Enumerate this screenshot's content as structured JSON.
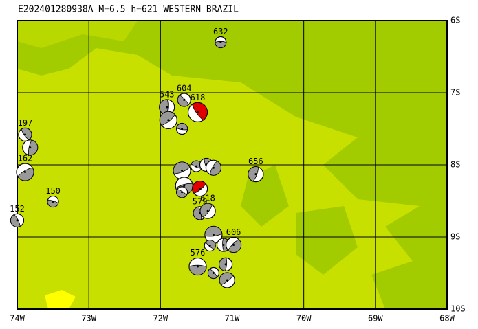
{
  "map": {
    "title": "E202401280938A M=6.5 h=621 WESTERN BRAZIL",
    "lonlim": [
      -74,
      -68
    ],
    "latlim": [
      -10,
      -6
    ],
    "lonticks": [
      {
        "value": -74,
        "label": "74W"
      },
      {
        "value": -73,
        "label": "73W"
      },
      {
        "value": -72,
        "label": "72W"
      },
      {
        "value": -71,
        "label": "71W"
      },
      {
        "value": -70,
        "label": "70W"
      },
      {
        "value": -69,
        "label": "69W"
      },
      {
        "value": -68,
        "label": "68W"
      }
    ],
    "latticks": [
      {
        "value": -6,
        "label": "6S"
      },
      {
        "value": -7,
        "label": "7S"
      },
      {
        "value": -8,
        "label": "8S"
      },
      {
        "value": -9,
        "label": "9S"
      },
      {
        "value": -10,
        "label": "10S"
      }
    ],
    "events": [
      {
        "label": "632",
        "lon": -71.16,
        "lat": -6.3
      },
      {
        "label": "604",
        "lon": -71.67,
        "lat": -7.1
      },
      {
        "label": "543",
        "lon": -71.91,
        "lat": -7.2
      },
      {
        "lon": -71.89,
        "lat": -7.38
      },
      {
        "lon": -71.7,
        "lat": -7.5
      },
      {
        "label": "197",
        "lon": -73.89,
        "lat": -7.58
      },
      {
        "lon": -73.82,
        "lat": -7.76
      },
      {
        "label": "162",
        "lon": -73.89,
        "lat": -8.1
      },
      {
        "label": "150",
        "lon": -73.5,
        "lat": -8.51
      },
      {
        "label": "152",
        "lon": -74.0,
        "lat": -8.77
      },
      {
        "label": "656",
        "lon": -70.67,
        "lat": -8.13
      },
      {
        "lon": -71.7,
        "lat": -8.08
      },
      {
        "lon": -71.5,
        "lat": -8.02
      },
      {
        "lon": -71.36,
        "lat": -8.0
      },
      {
        "lon": -71.26,
        "lat": -8.04
      },
      {
        "lon": -71.67,
        "lat": -8.29
      },
      {
        "lon": -71.7,
        "lat": -8.38
      },
      {
        "label": "579",
        "lon": -71.45,
        "lat": -8.67
      },
      {
        "label": "618",
        "lon": -71.34,
        "lat": -8.64
      },
      {
        "lon": -71.26,
        "lat": -8.97
      },
      {
        "lon": -71.31,
        "lat": -9.12
      },
      {
        "lon": -71.12,
        "lat": -9.11
      },
      {
        "label": "606",
        "lon": -70.98,
        "lat": -9.11
      },
      {
        "label": "576",
        "lon": -71.48,
        "lat": -9.41
      },
      {
        "lon": -71.26,
        "lat": -9.5
      },
      {
        "lon": -71.09,
        "lat": -9.38
      },
      {
        "lon": -71.07,
        "lat": -9.6
      }
    ],
    "main_event": {
      "label": "618",
      "lon": -71.48,
      "lat": -7.27
    },
    "second_event": {
      "lon": -71.45,
      "lat": -8.33
    }
  }
}
